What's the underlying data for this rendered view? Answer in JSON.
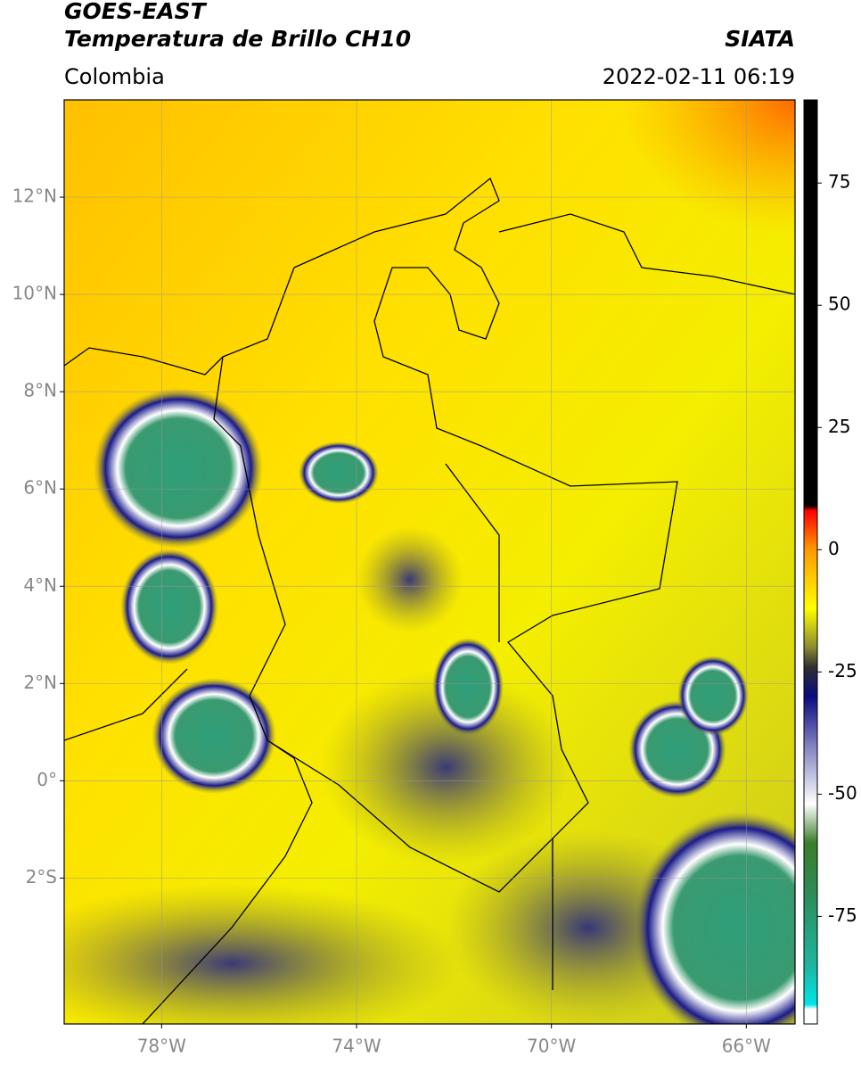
{
  "header": {
    "satellite": "GOES-EAST",
    "product": "Temperatura de Brillo CH10",
    "region": "Colombia",
    "source": "SIATA",
    "datetime": "2022-02-11 06:19"
  },
  "map": {
    "xlim": [
      -80,
      -65
    ],
    "ylim": [
      -5,
      14
    ],
    "xticks": [
      {
        "value": -78,
        "label": "78°W"
      },
      {
        "value": -74,
        "label": "74°W"
      },
      {
        "value": -70,
        "label": "70°W"
      },
      {
        "value": -66,
        "label": "66°W"
      }
    ],
    "yticks": [
      {
        "value": 12,
        "label": "12°N"
      },
      {
        "value": 10,
        "label": "10°N"
      },
      {
        "value": 8,
        "label": "8°N"
      },
      {
        "value": 6,
        "label": "6°N"
      },
      {
        "value": 4,
        "label": "4°N"
      },
      {
        "value": 2,
        "label": "2°N"
      },
      {
        "value": 0,
        "label": "0°"
      },
      {
        "value": -2,
        "label": "2°S"
      }
    ],
    "grid": true
  },
  "colorbar": {
    "lim": [
      -97,
      92
    ],
    "ticks": [
      75,
      50,
      25,
      0,
      -25,
      -50,
      -75
    ],
    "stops": [
      {
        "value": -97,
        "color": "#ffffff"
      },
      {
        "value": -94,
        "color": "#ffffff"
      },
      {
        "value": -93,
        "color": "#00e5e5"
      },
      {
        "value": -85,
        "color": "#1fb5a0"
      },
      {
        "value": -70,
        "color": "#2e8b57"
      },
      {
        "value": -60,
        "color": "#3a7d2a"
      },
      {
        "value": -52,
        "color": "#ffffff"
      },
      {
        "value": -40,
        "color": "#8080c0"
      },
      {
        "value": -30,
        "color": "#0a0a80"
      },
      {
        "value": -24,
        "color": "#303030"
      },
      {
        "value": -20,
        "color": "#8a8a30"
      },
      {
        "value": -12,
        "color": "#ffff00"
      },
      {
        "value": 0,
        "color": "#ff9900"
      },
      {
        "value": 8,
        "color": "#ff0000"
      },
      {
        "value": 9,
        "color": "#000000"
      },
      {
        "value": 92,
        "color": "#000000"
      }
    ]
  }
}
